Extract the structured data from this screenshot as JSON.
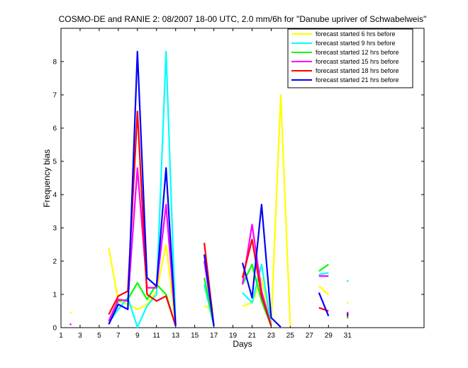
{
  "chart_data": {
    "type": "line",
    "title": "COSMO-DE and RANIE 2: 08/2007 18-00 UTC, 2.0 mm/6h for \"Danube upriver of Schwabelweis\"",
    "xlabel": "Days",
    "ylabel": "Frequency bias",
    "xlim": [
      1,
      39
    ],
    "ylim": [
      0,
      9
    ],
    "xticks": [
      1,
      3,
      5,
      7,
      9,
      11,
      13,
      15,
      17,
      19,
      21,
      23,
      25,
      27,
      29,
      31
    ],
    "yticks": [
      0,
      1,
      2,
      3,
      4,
      5,
      6,
      7,
      8
    ],
    "grid": false,
    "legend_position": "top-right",
    "series": [
      {
        "name": "forecast started 6 hrs before",
        "color": "#ffff00",
        "values": [
          [
            2,
            0.45
          ],
          null,
          [
            6,
            2.4
          ],
          [
            7,
            0.8
          ],
          [
            8,
            0.7
          ],
          [
            9,
            0.55
          ],
          [
            10,
            0.7
          ],
          [
            11,
            1.1
          ],
          [
            12,
            2.5
          ],
          [
            13,
            0.05
          ],
          null,
          [
            16,
            0.65
          ],
          [
            17,
            0.55
          ],
          null,
          [
            20,
            0.65
          ],
          [
            21,
            0.75
          ],
          [
            22,
            1.5
          ],
          [
            23,
            0.1
          ],
          [
            24,
            7.0
          ],
          [
            25,
            0.05
          ],
          null,
          [
            28,
            1.25
          ],
          [
            29,
            1.0
          ],
          null,
          [
            31,
            0.75
          ]
        ]
      },
      {
        "name": "forecast started 9 hrs before",
        "color": "#00ffff",
        "values": [
          [
            6,
            0.15
          ],
          [
            7,
            0.55
          ],
          [
            8,
            0.9
          ],
          [
            9,
            0.02
          ],
          [
            10,
            0.65
          ],
          [
            11,
            1.0
          ],
          [
            12,
            8.3
          ],
          [
            13,
            0.05
          ],
          null,
          [
            16,
            1.3
          ],
          [
            17,
            0.05
          ],
          null,
          [
            20,
            1.05
          ],
          [
            21,
            0.75
          ],
          [
            22,
            1.9
          ],
          [
            23,
            0.05
          ],
          null,
          [
            28,
            1.6
          ],
          [
            29,
            1.65
          ],
          null,
          [
            31,
            1.4
          ]
        ]
      },
      {
        "name": "forecast started 12 hrs before",
        "color": "#00ff00",
        "values": [
          [
            6,
            0.2
          ],
          [
            7,
            0.8
          ],
          [
            8,
            0.85
          ],
          [
            9,
            1.35
          ],
          [
            10,
            0.85
          ],
          [
            11,
            1.3
          ],
          [
            12,
            1.0
          ],
          [
            13,
            0.05
          ],
          null,
          [
            16,
            1.5
          ],
          [
            17,
            0.05
          ],
          null,
          [
            20,
            1.3
          ],
          [
            21,
            1.9
          ],
          [
            22,
            0.8
          ],
          [
            23,
            0.05
          ],
          null,
          [
            28,
            1.7
          ],
          [
            29,
            1.9
          ],
          null,
          [
            31,
            0.3
          ]
        ]
      },
      {
        "name": "forecast started 15 hrs before",
        "color": "#ff00ff",
        "values": [
          [
            2,
            0.1
          ],
          null,
          [
            6,
            0.2
          ],
          [
            7,
            0.85
          ],
          [
            8,
            0.8
          ],
          [
            9,
            4.8
          ],
          [
            10,
            1.2
          ],
          [
            11,
            1.2
          ],
          [
            12,
            3.7
          ],
          [
            13,
            0.05
          ],
          null,
          [
            16,
            2.0
          ],
          [
            17,
            0.05
          ],
          null,
          [
            20,
            1.3
          ],
          [
            21,
            3.1
          ],
          [
            22,
            1.1
          ],
          [
            23,
            0.05
          ],
          null,
          [
            28,
            1.55
          ],
          [
            29,
            1.55
          ],
          null,
          [
            31,
            0.45
          ]
        ]
      },
      {
        "name": "forecast started 18 hrs before",
        "color": "#ff0000",
        "values": [
          [
            6,
            0.4
          ],
          [
            7,
            0.95
          ],
          [
            8,
            1.1
          ],
          [
            9,
            6.5
          ],
          [
            10,
            1.0
          ],
          [
            11,
            0.8
          ],
          [
            12,
            0.95
          ],
          [
            13,
            0.05
          ],
          null,
          [
            16,
            2.55
          ],
          [
            17,
            0.05
          ],
          null,
          [
            20,
            1.5
          ],
          [
            21,
            2.65
          ],
          [
            22,
            0.95
          ],
          [
            23,
            0.05
          ],
          null,
          [
            28,
            0.6
          ],
          [
            29,
            0.5
          ],
          null,
          [
            31,
            0.35
          ]
        ]
      },
      {
        "name": "forecast started 21 hrs before",
        "color": "#0000ff",
        "values": [
          [
            6,
            0.1
          ],
          [
            7,
            0.7
          ],
          [
            8,
            0.55
          ],
          [
            9,
            8.3
          ],
          [
            10,
            1.5
          ],
          [
            11,
            1.25
          ],
          [
            12,
            4.8
          ],
          [
            13,
            0.05
          ],
          null,
          [
            16,
            2.2
          ],
          [
            17,
            0.05
          ],
          null,
          [
            20,
            1.95
          ],
          [
            21,
            0.9
          ],
          [
            22,
            3.7
          ],
          [
            23,
            0.3
          ],
          [
            24,
            0.02
          ],
          null,
          [
            28,
            1.05
          ],
          [
            29,
            0.35
          ],
          null,
          [
            31,
            0.4
          ]
        ]
      }
    ]
  }
}
